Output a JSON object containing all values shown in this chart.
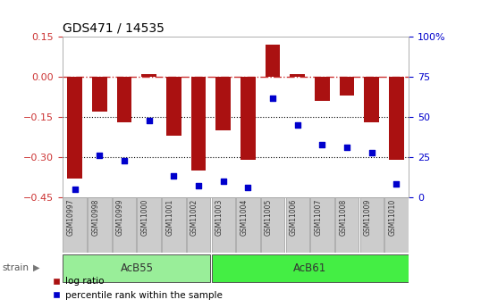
{
  "title": "GDS471 / 14535",
  "samples": [
    "GSM10997",
    "GSM10998",
    "GSM10999",
    "GSM11000",
    "GSM11001",
    "GSM11002",
    "GSM11003",
    "GSM11004",
    "GSM11005",
    "GSM11006",
    "GSM11007",
    "GSM11008",
    "GSM11009",
    "GSM11010"
  ],
  "log_ratios": [
    -0.38,
    -0.13,
    -0.17,
    0.01,
    -0.22,
    -0.35,
    -0.2,
    -0.31,
    0.12,
    0.01,
    -0.09,
    -0.07,
    -0.17,
    -0.31
  ],
  "percentile_ranks": [
    5,
    26,
    23,
    48,
    13,
    7,
    10,
    6,
    62,
    45,
    33,
    31,
    28,
    8
  ],
  "groups": [
    {
      "label": "AcB55",
      "start": 0,
      "end": 5,
      "color": "#99ee99"
    },
    {
      "label": "AcB61",
      "start": 6,
      "end": 13,
      "color": "#44ee44"
    }
  ],
  "ylim_left": [
    -0.45,
    0.15
  ],
  "ylim_right": [
    0,
    100
  ],
  "bar_color": "#aa1111",
  "dot_color": "#0000cc",
  "ref_line_color": "#cc3333",
  "hline_color": "#000000",
  "background_color": "#ffffff",
  "plot_bg_color": "#ffffff",
  "title_color": "#000000",
  "left_tick_color": "#cc3333",
  "right_tick_color": "#0000cc",
  "yticks_left": [
    -0.45,
    -0.3,
    -0.15,
    0.0,
    0.15
  ],
  "yticks_right": [
    0,
    25,
    50,
    75,
    100
  ],
  "hlines": [
    -0.15,
    -0.3
  ],
  "sample_box_color": "#cccccc",
  "legend_labels": [
    "log ratio",
    "percentile rank within the sample"
  ]
}
